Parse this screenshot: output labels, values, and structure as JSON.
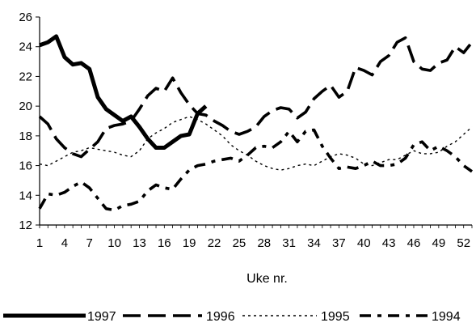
{
  "chart_data": {
    "type": "line",
    "title": "",
    "xlabel": "Uke nr.",
    "ylabel": "",
    "xlim": [
      1,
      53
    ],
    "ylim": [
      12,
      26
    ],
    "x_ticks": [
      1,
      4,
      7,
      10,
      13,
      16,
      19,
      22,
      25,
      28,
      31,
      34,
      37,
      40,
      43,
      46,
      49,
      52
    ],
    "y_ticks": [
      12,
      14,
      16,
      18,
      20,
      22,
      24,
      26
    ],
    "grid": false,
    "legend_position": "bottom",
    "series": [
      {
        "name": "1997",
        "style": "thick-solid",
        "points": [
          [
            1,
            24.1
          ],
          [
            2,
            24.3
          ],
          [
            3,
            24.7
          ],
          [
            4,
            23.3
          ],
          [
            5,
            22.8
          ],
          [
            6,
            22.9
          ],
          [
            7,
            22.5
          ],
          [
            8,
            20.6
          ],
          [
            9,
            19.8
          ],
          [
            10,
            19.4
          ],
          [
            11,
            19.0
          ],
          [
            12,
            19.3
          ],
          [
            13,
            18.6
          ],
          [
            14,
            17.8
          ],
          [
            15,
            17.2
          ],
          [
            16,
            17.2
          ],
          [
            17,
            17.6
          ],
          [
            18,
            18.0
          ],
          [
            19,
            18.1
          ],
          [
            20,
            19.5
          ],
          [
            21,
            20.0
          ]
        ]
      },
      {
        "name": "1996",
        "style": "long-dash",
        "points": [
          [
            1,
            19.3
          ],
          [
            2,
            18.8
          ],
          [
            3,
            17.8
          ],
          [
            4,
            17.2
          ],
          [
            5,
            16.8
          ],
          [
            6,
            16.6
          ],
          [
            7,
            17.1
          ],
          [
            8,
            17.6
          ],
          [
            9,
            18.5
          ],
          [
            10,
            18.7
          ],
          [
            11,
            18.8
          ],
          [
            12,
            19.0
          ],
          [
            13,
            19.8
          ],
          [
            14,
            20.7
          ],
          [
            15,
            21.2
          ],
          [
            16,
            21.0
          ],
          [
            17,
            21.9
          ],
          [
            18,
            20.9
          ],
          [
            19,
            20.1
          ],
          [
            20,
            19.5
          ],
          [
            21,
            19.4
          ],
          [
            22,
            19.0
          ],
          [
            23,
            18.7
          ],
          [
            24,
            18.3
          ],
          [
            25,
            18.1
          ],
          [
            26,
            18.3
          ],
          [
            27,
            18.6
          ],
          [
            28,
            19.3
          ],
          [
            29,
            19.7
          ],
          [
            30,
            19.9
          ],
          [
            31,
            19.8
          ],
          [
            32,
            19.2
          ],
          [
            33,
            19.6
          ],
          [
            34,
            20.5
          ],
          [
            35,
            21.0
          ],
          [
            36,
            21.4
          ],
          [
            37,
            20.6
          ],
          [
            38,
            21.0
          ],
          [
            39,
            22.6
          ],
          [
            40,
            22.4
          ],
          [
            41,
            22.1
          ],
          [
            42,
            23.0
          ],
          [
            43,
            23.4
          ],
          [
            44,
            24.3
          ],
          [
            45,
            24.6
          ],
          [
            46,
            23.0
          ],
          [
            47,
            22.5
          ],
          [
            48,
            22.4
          ],
          [
            49,
            22.9
          ],
          [
            50,
            23.1
          ],
          [
            51,
            24.0
          ],
          [
            52,
            23.6
          ],
          [
            53,
            24.3
          ]
        ]
      },
      {
        "name": "1995",
        "style": "short-dash",
        "points": [
          [
            1,
            16.1
          ],
          [
            2,
            16.0
          ],
          [
            3,
            16.3
          ],
          [
            4,
            16.6
          ],
          [
            5,
            16.9
          ],
          [
            6,
            17.0
          ],
          [
            7,
            17.2
          ],
          [
            8,
            17.1
          ],
          [
            9,
            17.0
          ],
          [
            10,
            16.9
          ],
          [
            11,
            16.7
          ],
          [
            12,
            16.6
          ],
          [
            13,
            17.0
          ],
          [
            14,
            17.8
          ],
          [
            15,
            18.2
          ],
          [
            16,
            18.5
          ],
          [
            17,
            18.9
          ],
          [
            18,
            19.1
          ],
          [
            19,
            19.3
          ],
          [
            20,
            19.1
          ],
          [
            21,
            18.8
          ],
          [
            22,
            18.4
          ],
          [
            23,
            18.0
          ],
          [
            24,
            17.4
          ],
          [
            25,
            17.0
          ],
          [
            26,
            16.7
          ],
          [
            27,
            16.3
          ],
          [
            28,
            16.0
          ],
          [
            29,
            15.8
          ],
          [
            30,
            15.7
          ],
          [
            31,
            15.8
          ],
          [
            32,
            16.0
          ],
          [
            33,
            16.1
          ],
          [
            34,
            16.0
          ],
          [
            35,
            16.3
          ],
          [
            36,
            16.6
          ],
          [
            37,
            16.8
          ],
          [
            38,
            16.7
          ],
          [
            39,
            16.5
          ],
          [
            40,
            16.1
          ],
          [
            41,
            16.0
          ],
          [
            42,
            16.2
          ],
          [
            43,
            16.4
          ],
          [
            44,
            16.4
          ],
          [
            45,
            16.7
          ],
          [
            46,
            17.0
          ],
          [
            47,
            16.8
          ],
          [
            48,
            16.8
          ],
          [
            49,
            16.9
          ],
          [
            50,
            17.3
          ],
          [
            51,
            17.6
          ],
          [
            52,
            18.1
          ],
          [
            53,
            18.6
          ]
        ]
      },
      {
        "name": "1994",
        "style": "dash-dot",
        "points": [
          [
            1,
            13.1
          ],
          [
            2,
            14.1
          ],
          [
            3,
            14.0
          ],
          [
            4,
            14.2
          ],
          [
            5,
            14.6
          ],
          [
            6,
            14.9
          ],
          [
            7,
            14.5
          ],
          [
            8,
            13.8
          ],
          [
            9,
            13.1
          ],
          [
            10,
            13.0
          ],
          [
            11,
            13.3
          ],
          [
            12,
            13.4
          ],
          [
            13,
            13.6
          ],
          [
            14,
            14.3
          ],
          [
            15,
            14.7
          ],
          [
            16,
            14.5
          ],
          [
            17,
            14.4
          ],
          [
            18,
            15.1
          ],
          [
            19,
            15.7
          ],
          [
            20,
            16.0
          ],
          [
            21,
            16.1
          ],
          [
            22,
            16.3
          ],
          [
            23,
            16.4
          ],
          [
            24,
            16.5
          ],
          [
            25,
            16.3
          ],
          [
            26,
            16.7
          ],
          [
            27,
            17.2
          ],
          [
            28,
            17.3
          ],
          [
            29,
            17.2
          ],
          [
            30,
            17.6
          ],
          [
            31,
            18.3
          ],
          [
            32,
            17.6
          ],
          [
            33,
            18.3
          ],
          [
            34,
            18.4
          ],
          [
            35,
            17.3
          ],
          [
            36,
            16.5
          ],
          [
            37,
            15.8
          ],
          [
            38,
            15.9
          ],
          [
            39,
            15.8
          ],
          [
            40,
            16.0
          ],
          [
            41,
            16.3
          ],
          [
            42,
            16.0
          ],
          [
            43,
            16.0
          ],
          [
            44,
            16.1
          ],
          [
            45,
            16.5
          ],
          [
            46,
            17.4
          ],
          [
            47,
            17.6
          ],
          [
            48,
            17.0
          ],
          [
            49,
            17.3
          ],
          [
            50,
            17.0
          ],
          [
            51,
            16.6
          ],
          [
            52,
            16.0
          ],
          [
            53,
            15.6
          ]
        ]
      }
    ]
  }
}
